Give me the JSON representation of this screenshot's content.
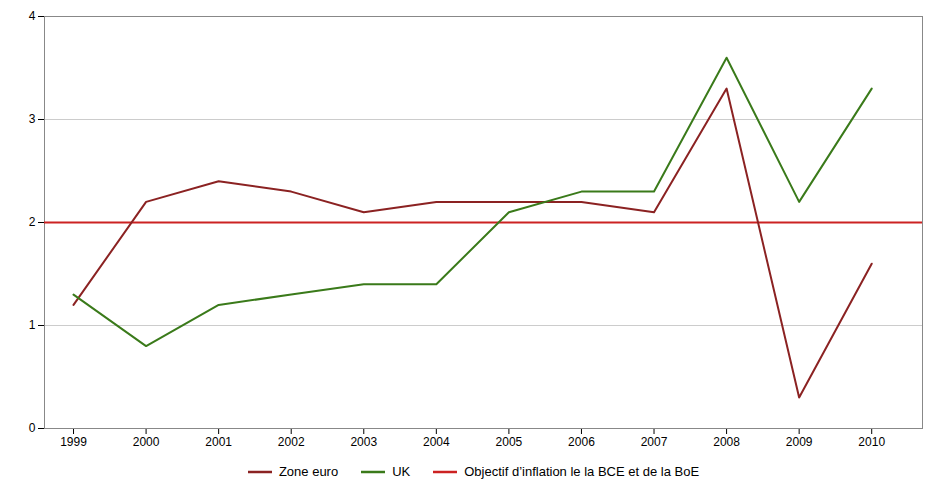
{
  "chart_data": {
    "type": "line",
    "x": [
      1999,
      2000,
      2001,
      2002,
      2003,
      2004,
      2005,
      2006,
      2007,
      2008,
      2009,
      2010
    ],
    "series": [
      {
        "name": "Zone euro",
        "color": "#8B2222",
        "values": [
          1.2,
          2.2,
          2.4,
          2.3,
          2.1,
          2.2,
          2.2,
          2.2,
          2.1,
          3.3,
          0.3,
          1.6
        ]
      },
      {
        "name": "UK",
        "color": "#3a7a1a",
        "values": [
          1.3,
          0.8,
          1.2,
          1.3,
          1.4,
          1.4,
          2.1,
          2.3,
          2.3,
          3.6,
          2.2,
          3.3
        ]
      }
    ],
    "reference_line": {
      "name": "Objectif d’inflation le la BCE et de la BoE",
      "color": "#cc2222",
      "value": 2.0
    },
    "xlim": [
      1998.6,
      2010.7
    ],
    "xticks": [
      1999,
      2000,
      2001,
      2002,
      2003,
      2004,
      2005,
      2006,
      2007,
      2008,
      2009,
      2010
    ],
    "ylim": [
      0,
      4
    ],
    "yticks": [
      0,
      1,
      2,
      3,
      4
    ],
    "grid": "y",
    "legend": "bottom"
  }
}
